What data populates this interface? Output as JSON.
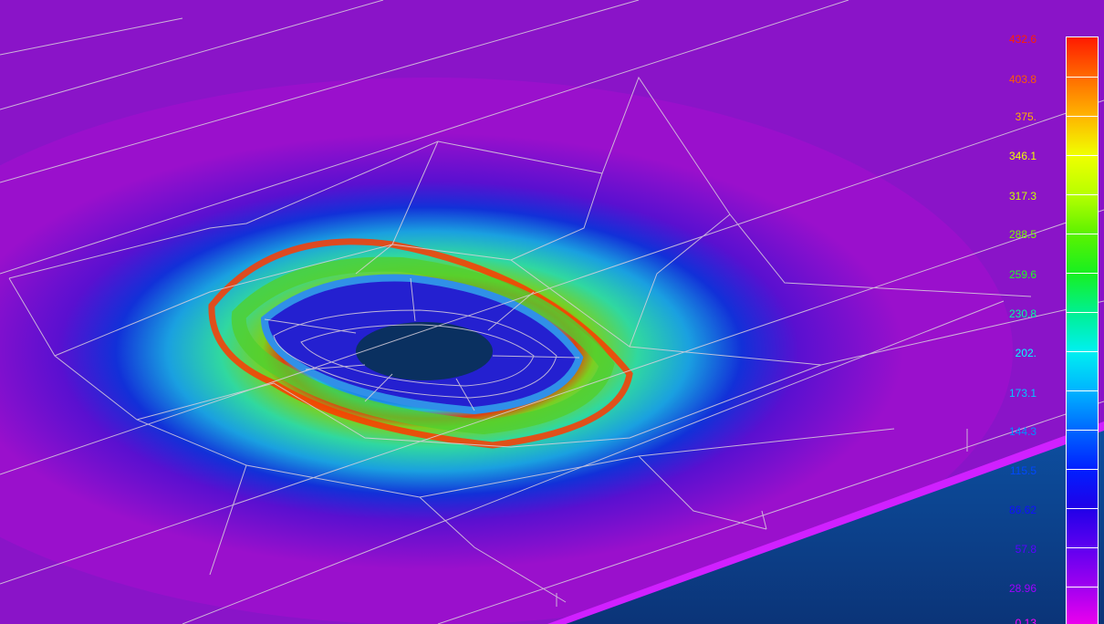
{
  "window": {
    "background": "#ffffff"
  },
  "model": {
    "plate_color": "#8a14c8",
    "hole_color": "#0a3060",
    "mesh_line_color": "#d9d0dc",
    "lower_face_color": "#0c3a8a"
  },
  "legend": {
    "labels": [
      "432.6",
      "403.8",
      "375.",
      "346.1",
      "317.3",
      "288.5",
      "259.6",
      "230.8",
      "202.",
      "173.1",
      "144.3",
      "115.5",
      "86.62",
      "57.8",
      "28.96",
      "0.13"
    ],
    "label_colors": [
      "#ff2000",
      "#ff5a00",
      "#ffb000",
      "#f0ff00",
      "#c8ff00",
      "#78ff00",
      "#20ff20",
      "#00ffa0",
      "#00ffff",
      "#00c8ff",
      "#0090ff",
      "#0048ff",
      "#1010ff",
      "#5a00ff",
      "#a000ff",
      "#ff00ff"
    ],
    "stops": [
      "#ff1a00",
      "#ff6a00",
      "#ffb400",
      "#f0ff00",
      "#b8ff00",
      "#5cf200",
      "#18f020",
      "#00f090",
      "#00f0f0",
      "#00b4ff",
      "#0068ff",
      "#0020ff",
      "#2000e8",
      "#5e00f0",
      "#a000f0",
      "#ee00ee"
    ]
  }
}
